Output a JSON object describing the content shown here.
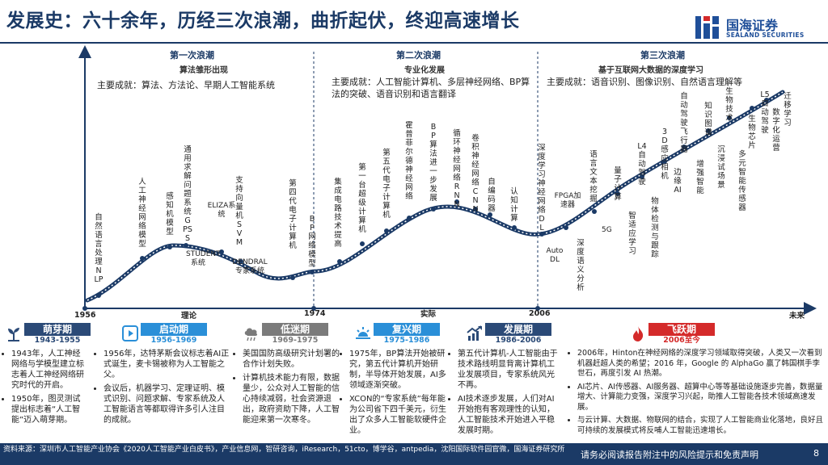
{
  "title": "发展史：六十余年，历经三次浪潮，曲折起伏，终迎高速增长",
  "logo": {
    "cn": "国海证券",
    "en": "SEALAND SECURITIES"
  },
  "waves": [
    {
      "title": "第一次浪潮",
      "sub": "算法雏形出现",
      "achievement": "主要成就：算法、方法论、早期人工智能系统"
    },
    {
      "title": "第二次浪潮",
      "sub": "专业化发展",
      "achievement": "主要成就：人工智能计算机、多层神经网络、BP算法的突破、语音识别和语言翻译"
    },
    {
      "title": "第三次浪潮",
      "sub": "基于互联网大数据的深度学习",
      "achievement": "主要成就：语音识别、图像识别、自然语言理解等"
    }
  ],
  "curve_labels": {
    "nlp": "自然语言处理NLP",
    "ann_model": "人工神经网络模型",
    "perceptron": "感知机模型",
    "gps": "通用求解问题系统GPSS",
    "student": "STUDENT系统",
    "eliza": "ELIZA系统",
    "svm": "支持向量机SVM",
    "dendral": "DENDRAL专家系统",
    "gen4": "第四代电子计算机",
    "bp": "BP网络模型",
    "ic": "集成电路技术提高",
    "supercomputer": "第一台超级计算机",
    "gen5": "第五代电子计算机",
    "hopfield": "霍普菲尔德神经网络",
    "bp_dev": "BP算法进一步发展",
    "rnn": "循环神经网络RNN",
    "cnn": "卷积神经网络CNN",
    "autoencoder": "自编码器",
    "cognitive": "认知计算",
    "dl_net": "深度学习神经网络DL",
    "autodl": "Auto DL",
    "fpga": "FPGA加速器",
    "nlp_deep": "深度语义分析",
    "text_mining": "语言文本挖掘",
    "5g": "5G",
    "quantum": "量子计算",
    "l4": "L4自动驾驶",
    "smart_learn": "智适应学习",
    "3d": "3D感应相机",
    "detect": "物体检测与跟踪",
    "drone": "自动驾驶飞行器",
    "edge": "边缘AI",
    "reinforce": "增强智能",
    "kg": "知识图谱",
    "immersive": "沉浸试场景",
    "biotech": "生物技术",
    "chip": "生物芯片",
    "multi_sensor": "多元智能传感器",
    "l5": "L5自动驾驶",
    "digital": "数字化运营",
    "transfer": "迁移学习"
  },
  "axis": {
    "y1956": "1956",
    "y1974": "1974",
    "y2006": "2006",
    "theory": "理论",
    "practice": "实际",
    "future": "未来"
  },
  "phases": [
    {
      "name": "萌芽期",
      "years": "1943-1955",
      "color": "#2b4a77"
    },
    {
      "name": "启动期",
      "years": "1956-1969",
      "color": "#2a8fd8"
    },
    {
      "name": "低迷期",
      "years": "1969-1975",
      "color": "#7b7b7b"
    },
    {
      "name": "复兴期",
      "years": "1975-1986",
      "color": "#2a8fd8"
    },
    {
      "name": "发展期",
      "years": "1986-2006",
      "color": "#2b4a77"
    },
    {
      "name": "飞跃期",
      "years": "2006至今",
      "color": "#d42a2a"
    }
  ],
  "col1": [
    "1943年，人工神经网络与学模型建立标志着人工神经网络研究时代的开启。",
    "1950年，图灵测试提出标志着“人工智能”迈入萌芽期。"
  ],
  "col2": [
    "1956年，达特茅斯会议标志着AI正式诞生，麦卡锡被称为人工智能之父。",
    "会议后，机器学习、定理证明、模式识别、问题求解、专家系统及人工智能语言等都取得许多引人注目的成就。"
  ],
  "col3": [
    "美国国防高级研究计划署的合作计划失败。",
    "计算机技术能力有限，数据量少，公众对人工智能的信心持续减弱，社会资源退出，政府资助下降，人工智能迎来第一次寒冬。"
  ],
  "col4": [
    "1975年，BP算法开始被研究，第五代计算机开始研制，半导体开始发展，AI多领域逐渐突破。",
    "XCON的“专家系统”每年能为公司省下四千美元，衍生出了众多人工智能软硬件企业。"
  ],
  "col5": [
    "第五代计算机-人工智能由于技术路线明显背离计算机工业发展项目，专家系统风光不再。",
    "AI技术逐步发展，人们对AI开始抱有客观理性的认知，人工智能技术开始进入平稳发展时期。"
  ],
  "col6": [
    "2006年，Hinton在神经网络的深度学习领域取得突破，人类又一次看到机器赶超人类的希望；2016 年，Google 的 AlphaGo 赢了韩国棋手李世石，再度引发 AI 热潮。",
    "AI芯片、AI传感器、AI服务器、超算中心等等基础设施逐步完善，数据量增大、计算能力变强，深度学习兴起，助推人工智能各技术领域高速发展。",
    "与云计算、大数据、物联网的结合，实现了人工智能商业化落地，良好且可持续的发展模式将反哺人工智能迅速增长。"
  ],
  "footer": {
    "source": "资料来源：深圳市人工智能产业协会《2020人工智能产业白皮书》，产业信息网，智研咨询，iResearch，51cto，博学谷，antpedia，沈阳国际软件园官微，国海证券研究所",
    "disclaimer": "请务必阅读报告附注中的风险提示和免责声明",
    "page": "8"
  }
}
